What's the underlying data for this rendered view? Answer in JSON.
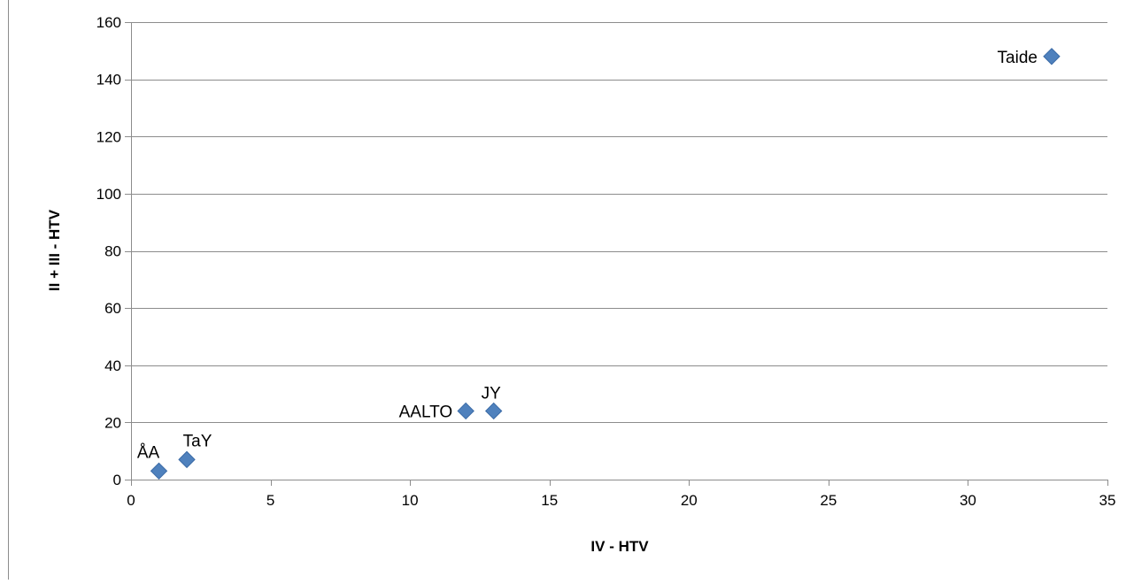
{
  "chart_data": {
    "type": "scatter",
    "xlabel": "IV - HTV",
    "ylabel": "II + III - HTV",
    "xlim": [
      0,
      35
    ],
    "ylim": [
      0,
      160
    ],
    "x_ticks": [
      "0",
      "5",
      "10",
      "15",
      "20",
      "25",
      "30",
      "35"
    ],
    "y_ticks": [
      "0",
      "20",
      "40",
      "60",
      "80",
      "100",
      "120",
      "140",
      "160"
    ],
    "grid": "horizontal",
    "legend": "none",
    "marker": "diamond",
    "marker_color": "#4F81BD",
    "points": [
      {
        "label": "ÅA",
        "x": 1,
        "y": 3
      },
      {
        "label": "TaY",
        "x": 2,
        "y": 7
      },
      {
        "label": "AALTO",
        "x": 12,
        "y": 24
      },
      {
        "label": "JY",
        "x": 13,
        "y": 24
      },
      {
        "label": "Taide",
        "x": 33,
        "y": 148
      }
    ]
  }
}
